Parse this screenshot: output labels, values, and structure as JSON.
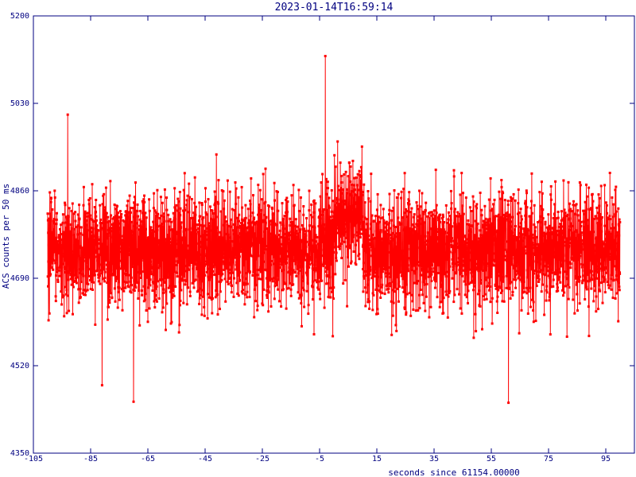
{
  "chart_data": {
    "type": "line",
    "title": "2023-01-14T16:59:14",
    "xlabel": "seconds since 61154.00000",
    "ylabel": "ACS counts per 50 ms",
    "xlim": [
      -105,
      105
    ],
    "ylim": [
      4350,
      5200
    ],
    "x_ticks": [
      -105,
      -85,
      -65,
      -45,
      -25,
      -5,
      15,
      35,
      55,
      75,
      95
    ],
    "y_ticks": [
      4350,
      4520,
      4690,
      4860,
      5030,
      5200
    ],
    "x_tick_labels": [
      "-105",
      "-85",
      "-65",
      "-45",
      "-25",
      "-5",
      "15",
      "35",
      "55",
      "75",
      "95"
    ],
    "y_tick_labels": [
      "4350",
      "4520",
      "4690",
      "4860",
      "5030",
      "5200"
    ],
    "grid": false,
    "series": [
      {
        "color": "#ff0000",
        "marker": "square",
        "sampling_interval_s": 0.05,
        "x_start": -100,
        "x_end": 99.95,
        "mean_level": 4745,
        "std_dev": 55,
        "notable_points": [
          {
            "x": -3,
            "y": 5122
          },
          {
            "x": 61,
            "y": 4448
          },
          {
            "x": -70,
            "y": 4450
          },
          {
            "x": -81,
            "y": 4482
          },
          {
            "x": -93,
            "y": 5008
          }
        ],
        "bump": {
          "x_from": 0,
          "x_to": 10,
          "mean_level": 4810
        }
      }
    ]
  }
}
